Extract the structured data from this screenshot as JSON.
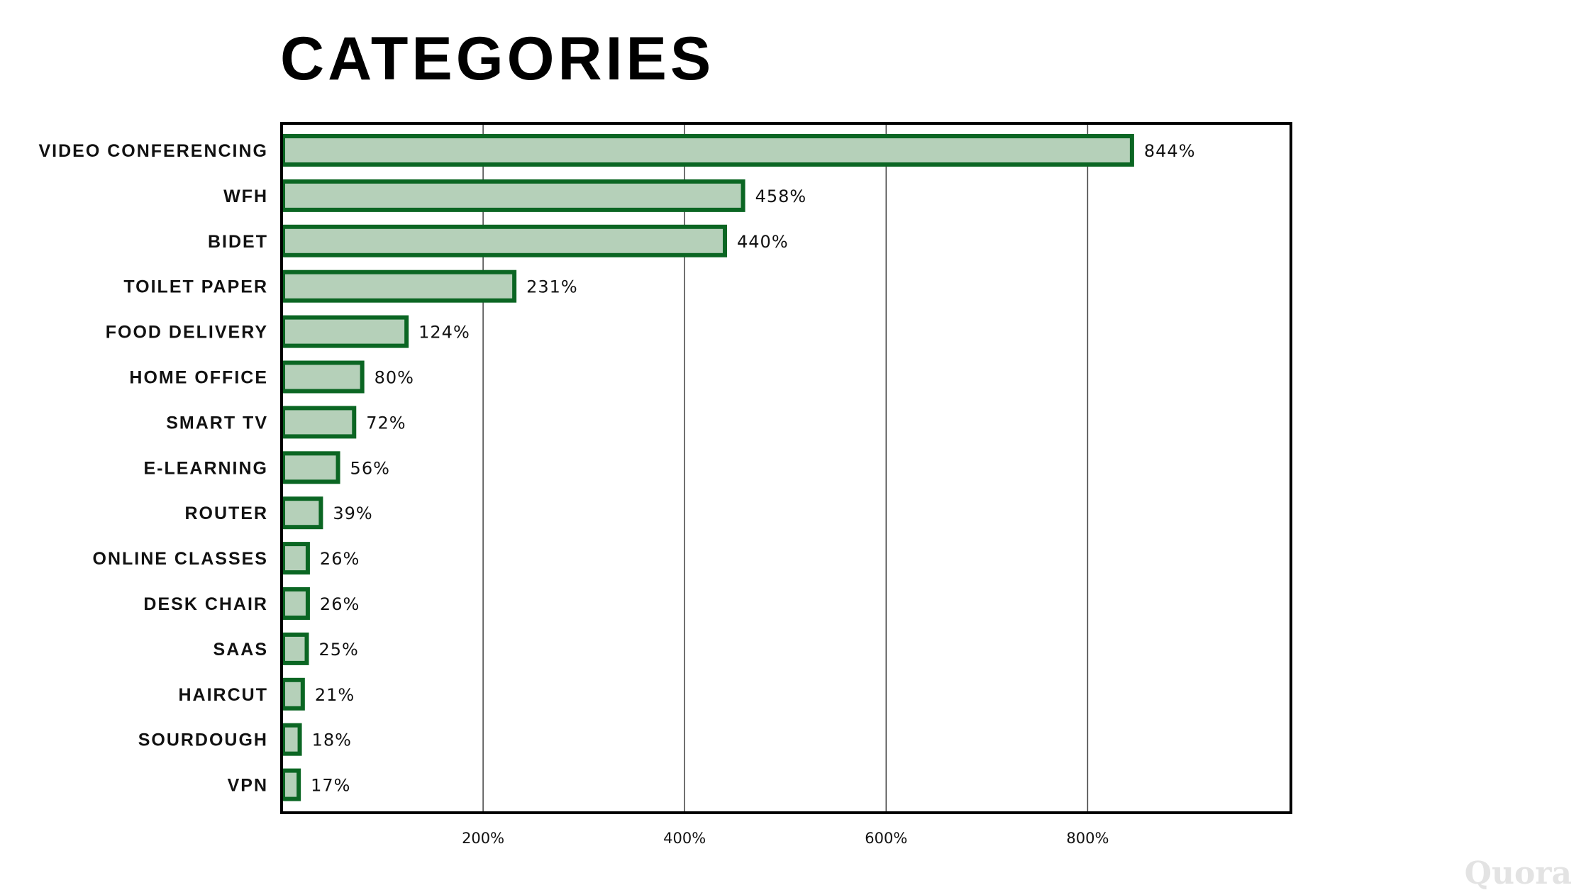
{
  "chart_data": {
    "type": "bar",
    "orientation": "horizontal",
    "title": "CATEGORIES",
    "xlabel": "",
    "ylabel": "",
    "xlim": [
      0,
      1000
    ],
    "x_ticks": [
      200,
      400,
      600,
      800
    ],
    "x_tick_labels": [
      "200%",
      "400%",
      "600%",
      "800%"
    ],
    "grid": "vertical",
    "categories": [
      "VIDEO CONFERENCING",
      "WFH",
      "BIDET",
      "TOILET PAPER",
      "FOOD DELIVERY",
      "HOME OFFICE",
      "SMART TV",
      "E-LEARNING",
      "ROUTER",
      "ONLINE CLASSES",
      "DESK CHAIR",
      "SAAS",
      "HAIRCUT",
      "SOURDOUGH",
      "VPN"
    ],
    "values": [
      844,
      458,
      440,
      231,
      124,
      80,
      72,
      56,
      39,
      26,
      26,
      25,
      21,
      18,
      17
    ],
    "value_labels": [
      "844%",
      "458%",
      "440%",
      "231%",
      "124%",
      "80%",
      "72%",
      "56%",
      "39%",
      "26%",
      "26%",
      "25%",
      "21%",
      "18%",
      "17%"
    ],
    "colors": {
      "bar_fill": "#b5d0b9",
      "bar_stroke": "#0b6623",
      "grid": "#444444",
      "frame": "#000000"
    }
  },
  "watermark": "Quora"
}
